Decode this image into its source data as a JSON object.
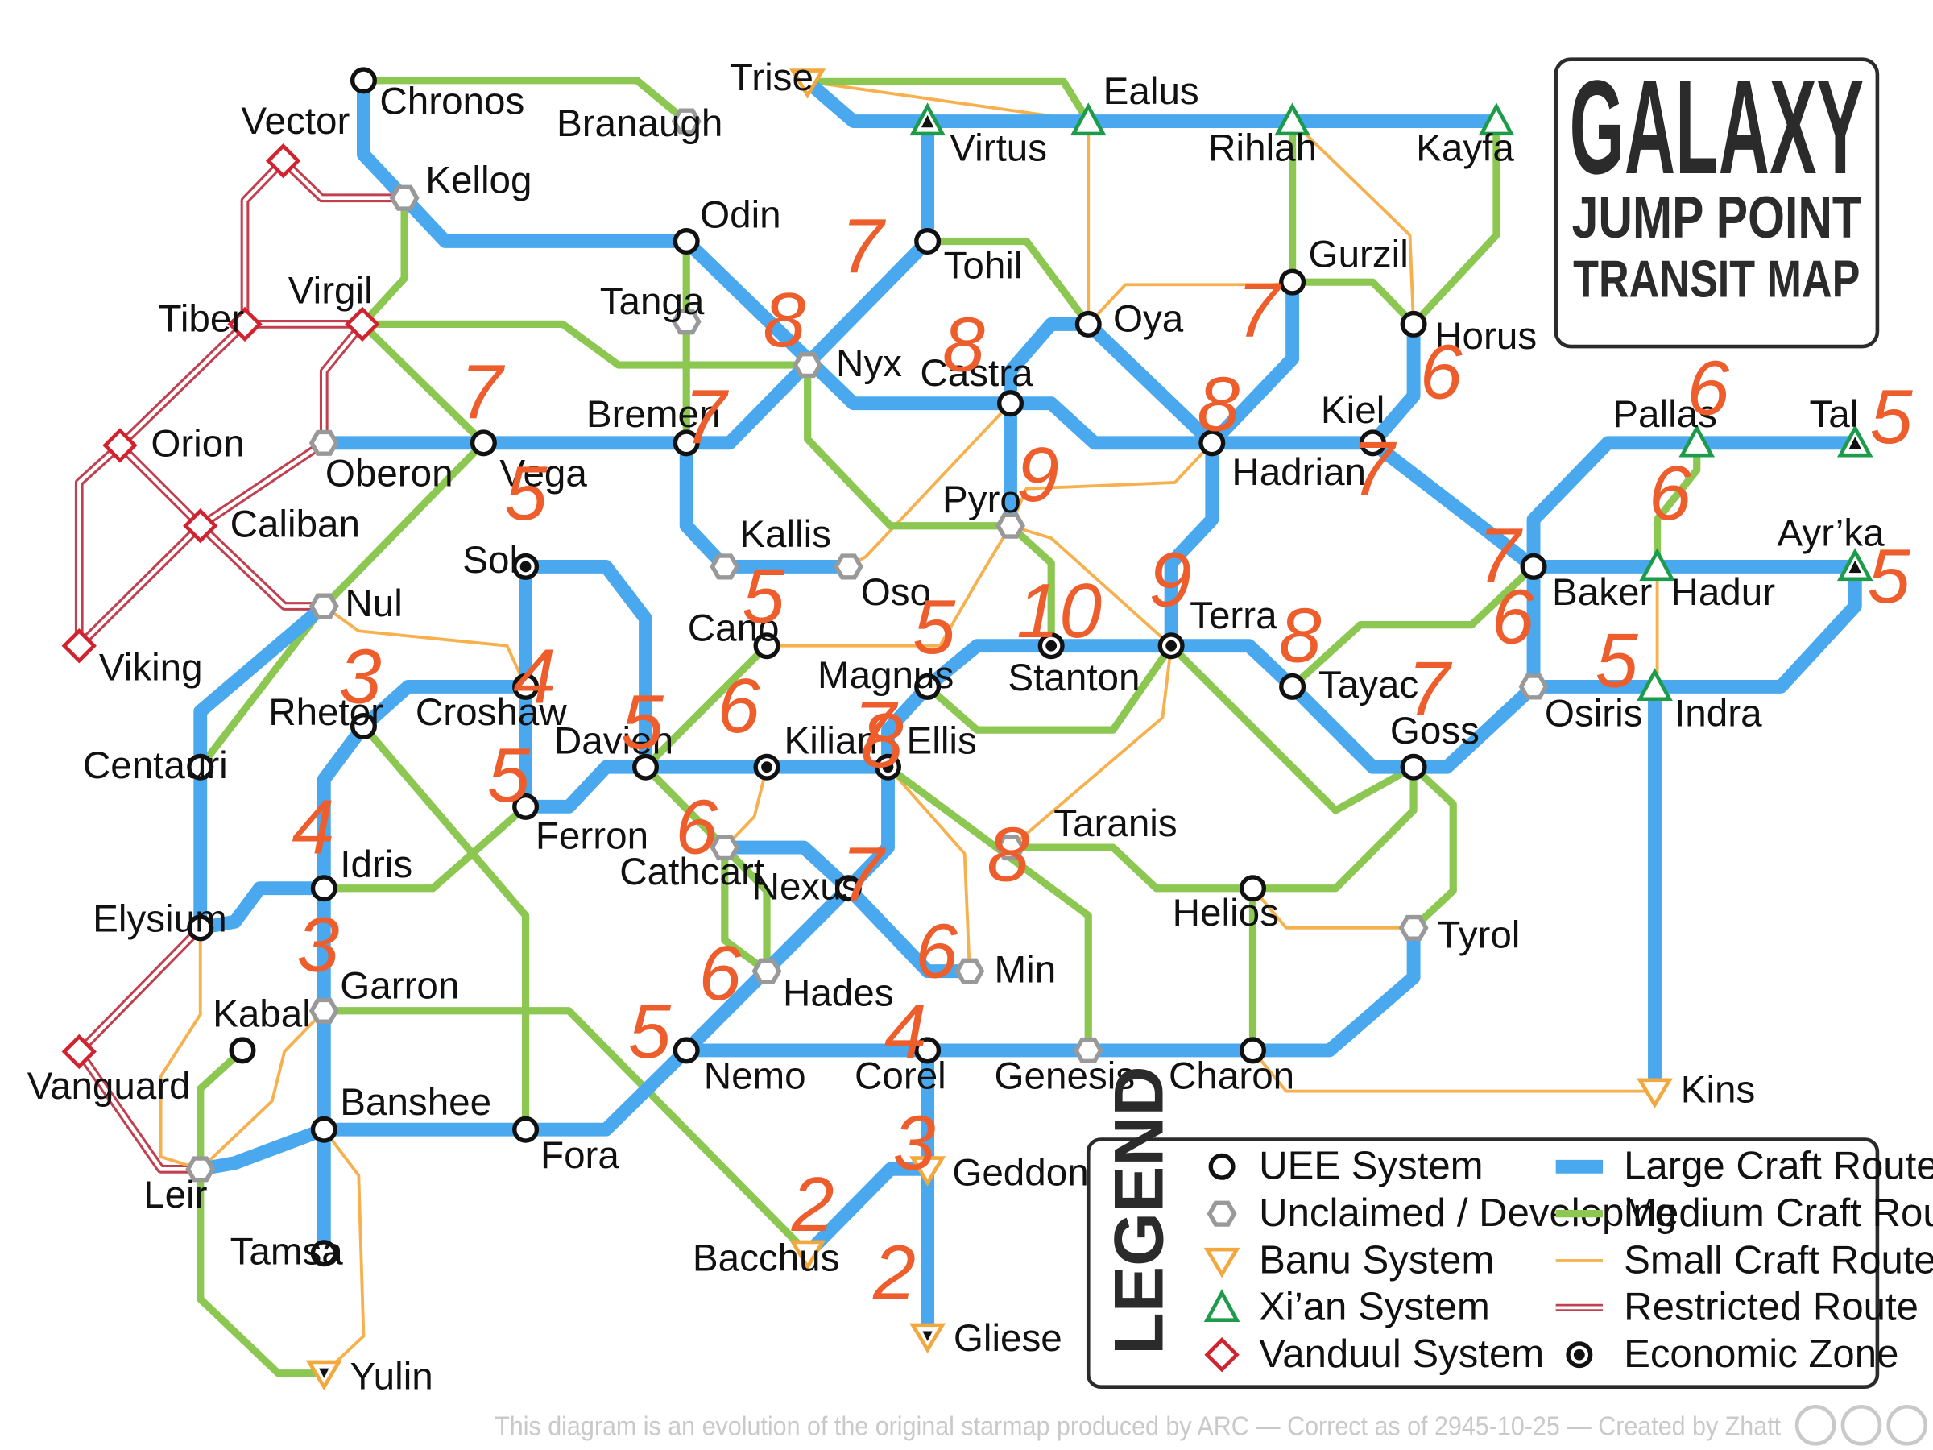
{
  "title": {
    "line1": "GALAXY",
    "line2": "JUMP POINT",
    "line3": "TRANSIT MAP"
  },
  "legend": {
    "heading": "LEGEND",
    "items": {
      "uee": "UEE System",
      "unclaimed": "Unclaimed / Developing",
      "banu": "Banu System",
      "xian": "Xi’an System",
      "vanduul": "Vanduul System",
      "large": "Large Craft Route",
      "medium": "Medium Craft Route",
      "small": "Small Craft Route",
      "restricted": "Restricted Route",
      "economic": "Economic Zone"
    }
  },
  "footer": "This diagram is an evolution of the original starmap produced by ARC — Correct as of 2945-10-25 — Created by Zhatt",
  "colors": {
    "large": "#4aa8ee",
    "medium": "#8cc751",
    "small": "#f6b04e",
    "restricted": "#c1404f",
    "banu": "#f2a83c",
    "xian": "#1c9c4a",
    "vanduul": "#d0222f",
    "unclaimed": "#999999",
    "annotation": "#ee5e2c"
  },
  "systems": [
    {
      "name": "Chronos",
      "type": "uee"
    },
    {
      "name": "Branaugh",
      "type": "unclaimed"
    },
    {
      "name": "Trise",
      "type": "banu"
    },
    {
      "name": "Ealus",
      "type": "xian"
    },
    {
      "name": "Virtus",
      "type": "xian"
    },
    {
      "name": "Rihlah",
      "type": "xian"
    },
    {
      "name": "Kayfa",
      "type": "xian"
    },
    {
      "name": "Vector",
      "type": "vanduul"
    },
    {
      "name": "Kellog",
      "type": "unclaimed"
    },
    {
      "name": "Odin",
      "type": "uee"
    },
    {
      "name": "Tohil",
      "type": "uee"
    },
    {
      "name": "Gurzil",
      "type": "uee"
    },
    {
      "name": "Tiber",
      "type": "vanduul"
    },
    {
      "name": "Virgil",
      "type": "vanduul"
    },
    {
      "name": "Tanga",
      "type": "unclaimed"
    },
    {
      "name": "Oya",
      "type": "uee"
    },
    {
      "name": "Horus",
      "type": "uee"
    },
    {
      "name": "Nyx",
      "type": "unclaimed"
    },
    {
      "name": "Castra",
      "type": "uee"
    },
    {
      "name": "Orion",
      "type": "vanduul"
    },
    {
      "name": "Oberon",
      "type": "unclaimed"
    },
    {
      "name": "Vega",
      "type": "uee"
    },
    {
      "name": "Bremen",
      "type": "uee"
    },
    {
      "name": "Hadrian",
      "type": "uee"
    },
    {
      "name": "Kiel",
      "type": "uee"
    },
    {
      "name": "Pallas",
      "type": "xian"
    },
    {
      "name": "Tal",
      "type": "xian"
    },
    {
      "name": "Caliban",
      "type": "vanduul"
    },
    {
      "name": "Pyro",
      "type": "unclaimed"
    },
    {
      "name": "Kallis",
      "type": "unclaimed"
    },
    {
      "name": "Ayr’ka",
      "type": "xian"
    },
    {
      "name": "Sol",
      "type": "uee"
    },
    {
      "name": "Oso",
      "type": "unclaimed"
    },
    {
      "name": "Baker",
      "type": "uee"
    },
    {
      "name": "Hadur",
      "type": "xian"
    },
    {
      "name": "Nul",
      "type": "unclaimed"
    },
    {
      "name": "Terra",
      "type": "uee"
    },
    {
      "name": "Viking",
      "type": "vanduul"
    },
    {
      "name": "Cano",
      "type": "uee"
    },
    {
      "name": "Magnus",
      "type": "uee"
    },
    {
      "name": "Stanton",
      "type": "uee"
    },
    {
      "name": "Tayac",
      "type": "uee"
    },
    {
      "name": "Rhetor",
      "type": "uee"
    },
    {
      "name": "Croshaw",
      "type": "uee"
    },
    {
      "name": "Osiris",
      "type": "unclaimed"
    },
    {
      "name": "Indra",
      "type": "xian"
    },
    {
      "name": "Goss",
      "type": "uee"
    },
    {
      "name": "Davien",
      "type": "uee"
    },
    {
      "name": "Kilian",
      "type": "uee"
    },
    {
      "name": "Ellis",
      "type": "uee"
    },
    {
      "name": "Centauri",
      "type": "uee"
    },
    {
      "name": "Ferron",
      "type": "uee"
    },
    {
      "name": "Taranis",
      "type": "unclaimed"
    },
    {
      "name": "Cathcart",
      "type": "unclaimed"
    },
    {
      "name": "Idris",
      "type": "uee"
    },
    {
      "name": "Nexus",
      "type": "uee"
    },
    {
      "name": "Helios",
      "type": "uee"
    },
    {
      "name": "Elysium",
      "type": "uee"
    },
    {
      "name": "Tyrol",
      "type": "unclaimed"
    },
    {
      "name": "Min",
      "type": "unclaimed"
    },
    {
      "name": "Garron",
      "type": "unclaimed"
    },
    {
      "name": "Hades",
      "type": "unclaimed"
    },
    {
      "name": "Kabal",
      "type": "uee"
    },
    {
      "name": "Nemo",
      "type": "uee"
    },
    {
      "name": "Corel",
      "type": "uee"
    },
    {
      "name": "Genesis",
      "type": "unclaimed"
    },
    {
      "name": "Charon",
      "type": "uee"
    },
    {
      "name": "Vanguard",
      "type": "vanduul"
    },
    {
      "name": "Kins",
      "type": "banu"
    },
    {
      "name": "Banshee",
      "type": "uee"
    },
    {
      "name": "Fora",
      "type": "uee"
    },
    {
      "name": "Leir",
      "type": "unclaimed"
    },
    {
      "name": "Geddon",
      "type": "banu"
    },
    {
      "name": "Tamsa",
      "type": "uee"
    },
    {
      "name": "Bacchus",
      "type": "banu"
    },
    {
      "name": "Gliese",
      "type": "banu"
    },
    {
      "name": "Yulin",
      "type": "banu"
    }
  ],
  "economic_zones": [
    "Sol",
    "Stanton",
    "Terra",
    "Kilian",
    "Ellis",
    "Virtus",
    "Tal",
    "Ayr’ka",
    "Gliese",
    "Yulin"
  ],
  "annotations": [
    "7",
    "8",
    "7",
    "8",
    "6",
    "7",
    "8",
    "9",
    "7",
    "6",
    "7",
    "6",
    "5",
    "5",
    "7",
    "6",
    "5",
    "5",
    "10",
    "9",
    "5",
    "5",
    "7",
    "8",
    "5",
    "6",
    "3",
    "4",
    "7",
    "8",
    "5",
    "6",
    "4",
    "7",
    "3",
    "5",
    "4",
    "6",
    "2",
    "3",
    "2",
    "8",
    "6"
  ]
}
